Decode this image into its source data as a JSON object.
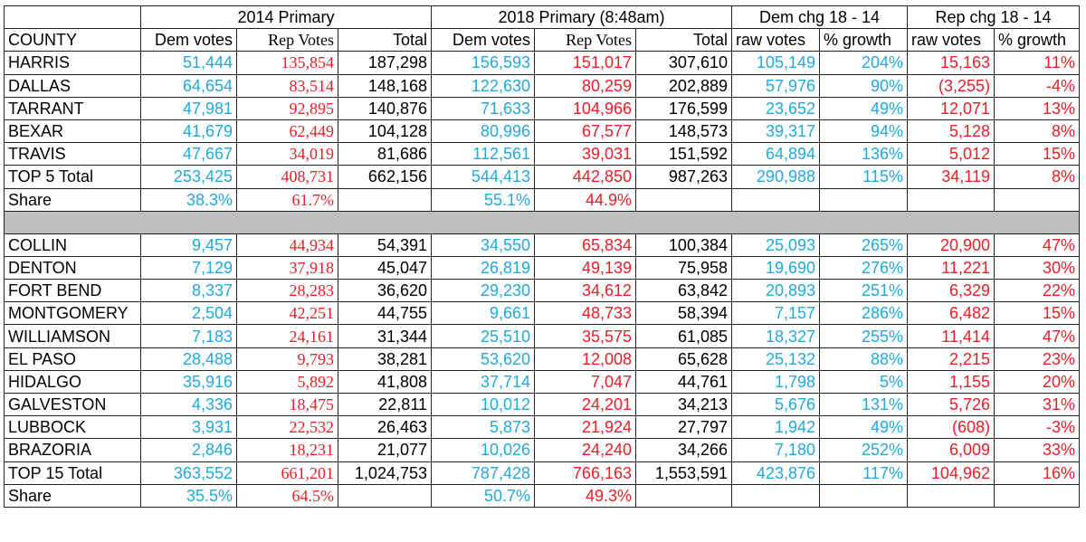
{
  "colors": {
    "dem": "#1fa9df",
    "rep": "#ee1c25",
    "separator": "#bfbfbf"
  },
  "header": {
    "group_2014": "2014 Primary",
    "group_2018": "2018 Primary (8:48am)",
    "group_dem_chg": "Dem chg 18 - 14",
    "group_rep_chg": "Rep chg 18 - 14",
    "col_county": "COUNTY",
    "col_dem_votes": "Dem votes",
    "col_rep_votes": "Rep Votes",
    "col_total": "Total",
    "col_raw_votes": "raw votes",
    "col_growth": "% growth"
  },
  "top5": [
    {
      "county": "HARRIS",
      "d14": "51,444",
      "r14": "135,854",
      "t14": "187,298",
      "d18": "156,593",
      "r18": "151,017",
      "t18": "307,610",
      "draw": "105,149",
      "dpct": "204%",
      "rraw": "15,163",
      "rpct": "11%"
    },
    {
      "county": "DALLAS",
      "d14": "64,654",
      "r14": "83,514",
      "t14": "148,168",
      "d18": "122,630",
      "r18": "80,259",
      "t18": "202,889",
      "draw": "57,976",
      "dpct": "90%",
      "rraw": "(3,255)",
      "rpct": "-4%"
    },
    {
      "county": "TARRANT",
      "d14": "47,981",
      "r14": "92,895",
      "t14": "140,876",
      "d18": "71,633",
      "r18": "104,966",
      "t18": "176,599",
      "draw": "23,652",
      "dpct": "49%",
      "rraw": "12,071",
      "rpct": "13%"
    },
    {
      "county": "BEXAR",
      "d14": "41,679",
      "r14": "62,449",
      "t14": "104,128",
      "d18": "80,996",
      "r18": "67,577",
      "t18": "148,573",
      "draw": "39,317",
      "dpct": "94%",
      "rraw": "5,128",
      "rpct": "8%"
    },
    {
      "county": "TRAVIS",
      "d14": "47,667",
      "r14": "34,019",
      "t14": "81,686",
      "d18": "112,561",
      "r18": "39,031",
      "t18": "151,592",
      "draw": "64,894",
      "dpct": "136%",
      "rraw": "5,012",
      "rpct": "15%"
    }
  ],
  "top5_total": {
    "county": "TOP 5 Total",
    "d14": "253,425",
    "r14": "408,731",
    "t14": "662,156",
    "d18": "544,413",
    "r18": "442,850",
    "t18": "987,263",
    "draw": "290,988",
    "dpct": "115%",
    "rraw": "34,119",
    "rpct": "8%"
  },
  "top5_share": {
    "label": "Share",
    "d14": "38.3%",
    "r14": "61.7%",
    "d18": "55.1%",
    "r18": "44.9%"
  },
  "others": [
    {
      "county": "COLLIN",
      "d14": "9,457",
      "r14": "44,934",
      "t14": "54,391",
      "d18": "34,550",
      "r18": "65,834",
      "t18": "100,384",
      "draw": "25,093",
      "dpct": "265%",
      "rraw": "20,900",
      "rpct": "47%"
    },
    {
      "county": "DENTON",
      "d14": "7,129",
      "r14": "37,918",
      "t14": "45,047",
      "d18": "26,819",
      "r18": "49,139",
      "t18": "75,958",
      "draw": "19,690",
      "dpct": "276%",
      "rraw": "11,221",
      "rpct": "30%"
    },
    {
      "county": "FORT BEND",
      "d14": "8,337",
      "r14": "28,283",
      "t14": "36,620",
      "d18": "29,230",
      "r18": "34,612",
      "t18": "63,842",
      "draw": "20,893",
      "dpct": "251%",
      "rraw": "6,329",
      "rpct": "22%"
    },
    {
      "county": "MONTGOMERY",
      "d14": "2,504",
      "r14": "42,251",
      "t14": "44,755",
      "d18": "9,661",
      "r18": "48,733",
      "t18": "58,394",
      "draw": "7,157",
      "dpct": "286%",
      "rraw": "6,482",
      "rpct": "15%"
    },
    {
      "county": "WILLIAMSON",
      "d14": "7,183",
      "r14": "24,161",
      "t14": "31,344",
      "d18": "25,510",
      "r18": "35,575",
      "t18": "61,085",
      "draw": "18,327",
      "dpct": "255%",
      "rraw": "11,414",
      "rpct": "47%"
    },
    {
      "county": "EL PASO",
      "d14": "28,488",
      "r14": "9,793",
      "t14": "38,281",
      "d18": "53,620",
      "r18": "12,008",
      "t18": "65,628",
      "draw": "25,132",
      "dpct": "88%",
      "rraw": "2,215",
      "rpct": "23%"
    },
    {
      "county": "HIDALGO",
      "d14": "35,916",
      "r14": "5,892",
      "t14": "41,808",
      "d18": "37,714",
      "r18": "7,047",
      "t18": "44,761",
      "draw": "1,798",
      "dpct": "5%",
      "rraw": "1,155",
      "rpct": "20%"
    },
    {
      "county": "GALVESTON",
      "d14": "4,336",
      "r14": "18,475",
      "t14": "22,811",
      "d18": "10,012",
      "r18": "24,201",
      "t18": "34,213",
      "draw": "5,676",
      "dpct": "131%",
      "rraw": "5,726",
      "rpct": "31%"
    },
    {
      "county": "LUBBOCK",
      "d14": "3,931",
      "r14": "22,532",
      "t14": "26,463",
      "d18": "5,873",
      "r18": "21,924",
      "t18": "27,797",
      "draw": "1,942",
      "dpct": "49%",
      "rraw": "(608)",
      "rpct": "-3%"
    },
    {
      "county": "BRAZORIA",
      "d14": "2,846",
      "r14": "18,231",
      "t14": "21,077",
      "d18": "10,026",
      "r18": "24,240",
      "t18": "34,266",
      "draw": "7,180",
      "dpct": "252%",
      "rraw": "6,009",
      "rpct": "33%"
    }
  ],
  "top15_total": {
    "county": "TOP 15 Total",
    "d14": "363,552",
    "r14": "661,201",
    "t14": "1,024,753",
    "d18": "787,428",
    "r18": "766,163",
    "t18": "1,553,591",
    "draw": "423,876",
    "dpct": "117%",
    "rraw": "104,962",
    "rpct": "16%"
  },
  "top15_share": {
    "label": "Share",
    "d14": "35.5%",
    "r14": "64.5%",
    "d18": "50.7%",
    "r18": "49.3%"
  }
}
